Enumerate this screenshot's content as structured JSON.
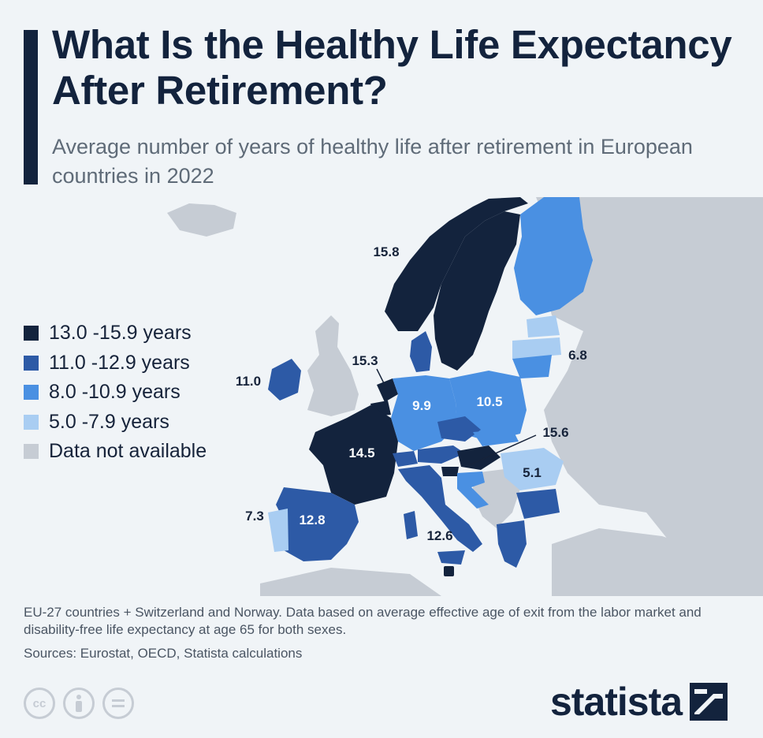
{
  "title": "What Is the Healthy Life Expectancy After Retirement?",
  "subtitle": "Average number of years of healthy life after retirement in European countries in 2022",
  "legend": [
    {
      "label": "13.0 -15.9 years",
      "color": "#13233d"
    },
    {
      "label": "11.0 -12.9 years",
      "color": "#2d5aa6"
    },
    {
      "label": "8.0 -10.9 years",
      "color": "#4a90e2"
    },
    {
      "label": "5.0 -7.9 years",
      "color": "#a9cdf2"
    },
    {
      "label": "Data not available",
      "color": "#c6ccd4"
    }
  ],
  "map": {
    "countries": [
      {
        "name": "Norway",
        "value": 15.8,
        "label": "15.8"
      },
      {
        "name": "Sweden",
        "value": 14.0
      },
      {
        "name": "Finland",
        "value": 9.5
      },
      {
        "name": "Estonia",
        "value": 6.5
      },
      {
        "name": "Latvia",
        "value": 6.0
      },
      {
        "name": "Lithuania",
        "value": 6.8,
        "label": "6.8"
      },
      {
        "name": "Denmark",
        "value": 12.0
      },
      {
        "name": "Ireland",
        "value": 11.0,
        "label": "11.0"
      },
      {
        "name": "Netherlands",
        "value": 15.3,
        "label": "15.3"
      },
      {
        "name": "Belgium",
        "value": 14.0
      },
      {
        "name": "Germany",
        "value": 9.9,
        "label": "9.9"
      },
      {
        "name": "Poland",
        "value": 10.5,
        "label": "10.5"
      },
      {
        "name": "France",
        "value": 14.5,
        "label": "14.5"
      },
      {
        "name": "Switzerland",
        "value": 12.0
      },
      {
        "name": "Austria",
        "value": 12.0
      },
      {
        "name": "Czechia",
        "value": 11.0
      },
      {
        "name": "Slovakia",
        "value": 9.0
      },
      {
        "name": "Hungary",
        "value": 15.6,
        "label": "15.6"
      },
      {
        "name": "Slovenia",
        "value": 13.5
      },
      {
        "name": "Croatia",
        "value": 9.0
      },
      {
        "name": "Romania",
        "value": 5.1,
        "label": "5.1"
      },
      {
        "name": "Bulgaria",
        "value": 11.5
      },
      {
        "name": "Greece",
        "value": 12.0
      },
      {
        "name": "Italy",
        "value": 12.6,
        "label": "12.6"
      },
      {
        "name": "Malta",
        "value": 14.0
      },
      {
        "name": "Spain",
        "value": 12.8,
        "label": "12.8"
      },
      {
        "name": "Portugal",
        "value": 7.3,
        "label": "7.3"
      }
    ]
  },
  "footnote": "EU-27 countries + Switzerland and Norway. Data based on average effective age of exit from the labor market and disability-free life expectancy at age 65 for both sexes.",
  "sources": "Sources: Eurostat, OECD, Statista calculations",
  "brand": "statista"
}
